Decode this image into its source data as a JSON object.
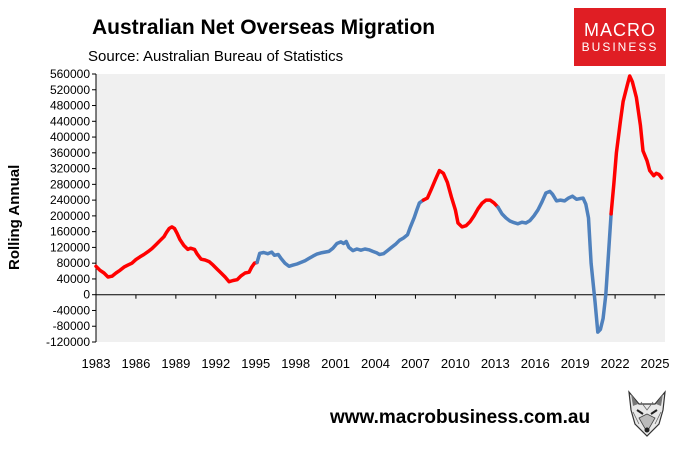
{
  "header": {
    "title": "Australian Net Overseas Migration",
    "subtitle": "Source: Australian Bureau of Statistics"
  },
  "logo": {
    "line1": "MACRO",
    "line2": "BUSINESS"
  },
  "footer": {
    "website": "www.macrobusiness.com.au"
  },
  "chart_data": {
    "type": "line",
    "title": "Australian Net Overseas Migration",
    "subtitle": "Source: Australian Bureau of Statistics",
    "xlabel": "",
    "ylabel": "Rolling Annual",
    "xlim": [
      1983,
      2025.75
    ],
    "ylim": [
      -120000,
      560000
    ],
    "y_ticks": [
      -120000,
      -80000,
      -40000,
      0,
      40000,
      80000,
      120000,
      160000,
      200000,
      240000,
      280000,
      320000,
      360000,
      400000,
      440000,
      480000,
      520000,
      560000
    ],
    "x_ticks": [
      1983,
      1986,
      1989,
      1992,
      1995,
      1998,
      2001,
      2004,
      2007,
      2010,
      2013,
      2016,
      2019,
      2022,
      2025
    ],
    "grid": false,
    "colors": {
      "red": "#ff0000",
      "blue": "#4f81bd",
      "plot_bg": "#f0f0f0"
    },
    "points": [
      [
        1983.0,
        72000
      ],
      [
        1983.3,
        62000
      ],
      [
        1983.6,
        55000
      ],
      [
        1983.9,
        45000
      ],
      [
        1984.2,
        47000
      ],
      [
        1984.5,
        55000
      ],
      [
        1984.8,
        62000
      ],
      [
        1985.1,
        70000
      ],
      [
        1985.4,
        75000
      ],
      [
        1985.7,
        80000
      ],
      [
        1986.0,
        89000
      ],
      [
        1986.3,
        96000
      ],
      [
        1986.6,
        102000
      ],
      [
        1986.9,
        109000
      ],
      [
        1987.2,
        117000
      ],
      [
        1987.5,
        127000
      ],
      [
        1987.8,
        137000
      ],
      [
        1988.1,
        147000
      ],
      [
        1988.3,
        158000
      ],
      [
        1988.5,
        168000
      ],
      [
        1988.7,
        172000
      ],
      [
        1988.9,
        168000
      ],
      [
        1989.1,
        155000
      ],
      [
        1989.3,
        140000
      ],
      [
        1989.6,
        125000
      ],
      [
        1989.9,
        115000
      ],
      [
        1990.1,
        118000
      ],
      [
        1990.4,
        115000
      ],
      [
        1990.6,
        103000
      ],
      [
        1990.9,
        90000
      ],
      [
        1991.2,
        88000
      ],
      [
        1991.5,
        84000
      ],
      [
        1991.8,
        75000
      ],
      [
        1992.1,
        65000
      ],
      [
        1992.4,
        55000
      ],
      [
        1992.7,
        45000
      ],
      [
        1993.0,
        33000
      ],
      [
        1993.3,
        36000
      ],
      [
        1993.6,
        38000
      ],
      [
        1993.9,
        48000
      ],
      [
        1994.2,
        55000
      ],
      [
        1994.5,
        57000
      ],
      [
        1994.7,
        70000
      ],
      [
        1994.9,
        80000
      ],
      [
        1995.1,
        82000
      ],
      [
        1995.3,
        105000
      ],
      [
        1995.6,
        107000
      ],
      [
        1995.9,
        104000
      ],
      [
        1996.2,
        108000
      ],
      [
        1996.4,
        100000
      ],
      [
        1996.7,
        102000
      ],
      [
        1996.9,
        92000
      ],
      [
        1997.2,
        80000
      ],
      [
        1997.5,
        72000
      ],
      [
        1997.8,
        75000
      ],
      [
        1998.1,
        78000
      ],
      [
        1998.4,
        82000
      ],
      [
        1998.7,
        86000
      ],
      [
        1999.0,
        92000
      ],
      [
        1999.3,
        98000
      ],
      [
        1999.6,
        103000
      ],
      [
        1999.9,
        106000
      ],
      [
        2000.2,
        108000
      ],
      [
        2000.5,
        110000
      ],
      [
        2000.8,
        118000
      ],
      [
        2001.1,
        130000
      ],
      [
        2001.4,
        134000
      ],
      [
        2001.6,
        130000
      ],
      [
        2001.8,
        135000
      ],
      [
        2002.0,
        120000
      ],
      [
        2002.3,
        112000
      ],
      [
        2002.6,
        116000
      ],
      [
        2002.9,
        113000
      ],
      [
        2003.2,
        116000
      ],
      [
        2003.5,
        114000
      ],
      [
        2003.8,
        110000
      ],
      [
        2004.1,
        106000
      ],
      [
        2004.3,
        102000
      ],
      [
        2004.6,
        104000
      ],
      [
        2004.9,
        112000
      ],
      [
        2005.2,
        120000
      ],
      [
        2005.5,
        128000
      ],
      [
        2005.8,
        138000
      ],
      [
        2006.1,
        144000
      ],
      [
        2006.4,
        152000
      ],
      [
        2006.6,
        170000
      ],
      [
        2006.9,
        195000
      ],
      [
        2007.1,
        215000
      ],
      [
        2007.3,
        233000
      ],
      [
        2007.6,
        240000
      ],
      [
        2007.9,
        245000
      ],
      [
        2008.2,
        268000
      ],
      [
        2008.5,
        292000
      ],
      [
        2008.8,
        315000
      ],
      [
        2009.1,
        308000
      ],
      [
        2009.4,
        285000
      ],
      [
        2009.7,
        248000
      ],
      [
        2010.0,
        215000
      ],
      [
        2010.2,
        182000
      ],
      [
        2010.5,
        172000
      ],
      [
        2010.8,
        175000
      ],
      [
        2011.1,
        185000
      ],
      [
        2011.4,
        200000
      ],
      [
        2011.7,
        218000
      ],
      [
        2012.0,
        232000
      ],
      [
        2012.3,
        240000
      ],
      [
        2012.6,
        240000
      ],
      [
        2012.9,
        233000
      ],
      [
        2013.2,
        222000
      ],
      [
        2013.5,
        205000
      ],
      [
        2013.8,
        195000
      ],
      [
        2014.1,
        187000
      ],
      [
        2014.4,
        183000
      ],
      [
        2014.7,
        180000
      ],
      [
        2015.0,
        184000
      ],
      [
        2015.3,
        182000
      ],
      [
        2015.6,
        188000
      ],
      [
        2015.9,
        200000
      ],
      [
        2016.2,
        215000
      ],
      [
        2016.5,
        235000
      ],
      [
        2016.8,
        258000
      ],
      [
        2017.1,
        262000
      ],
      [
        2017.3,
        255000
      ],
      [
        2017.6,
        238000
      ],
      [
        2017.9,
        240000
      ],
      [
        2018.2,
        238000
      ],
      [
        2018.5,
        245000
      ],
      [
        2018.8,
        250000
      ],
      [
        2019.1,
        242000
      ],
      [
        2019.4,
        244000
      ],
      [
        2019.6,
        245000
      ],
      [
        2019.8,
        230000
      ],
      [
        2020.0,
        195000
      ],
      [
        2020.2,
        80000
      ],
      [
        2020.5,
        -20000
      ],
      [
        2020.7,
        -95000
      ],
      [
        2020.9,
        -88000
      ],
      [
        2021.1,
        -60000
      ],
      [
        2021.3,
        0
      ],
      [
        2021.5,
        100000
      ],
      [
        2021.7,
        205000
      ],
      [
        2021.9,
        280000
      ],
      [
        2022.1,
        360000
      ],
      [
        2022.4,
        440000
      ],
      [
        2022.6,
        490000
      ],
      [
        2022.9,
        530000
      ],
      [
        2023.1,
        555000
      ],
      [
        2023.3,
        540000
      ],
      [
        2023.6,
        500000
      ],
      [
        2023.9,
        430000
      ],
      [
        2024.1,
        365000
      ],
      [
        2024.4,
        340000
      ],
      [
        2024.6,
        315000
      ],
      [
        2024.9,
        302000
      ],
      [
        2025.1,
        308000
      ],
      [
        2025.3,
        305000
      ],
      [
        2025.5,
        296000
      ]
    ],
    "segments": [
      {
        "color": "red",
        "from": 1983.0,
        "to": 1995.1
      },
      {
        "color": "blue",
        "from": 1995.1,
        "to": 2007.6
      },
      {
        "color": "red",
        "from": 2007.6,
        "to": 2013.2
      },
      {
        "color": "blue",
        "from": 2013.2,
        "to": 2021.7
      },
      {
        "color": "red",
        "from": 2021.7,
        "to": 2025.5
      }
    ]
  }
}
